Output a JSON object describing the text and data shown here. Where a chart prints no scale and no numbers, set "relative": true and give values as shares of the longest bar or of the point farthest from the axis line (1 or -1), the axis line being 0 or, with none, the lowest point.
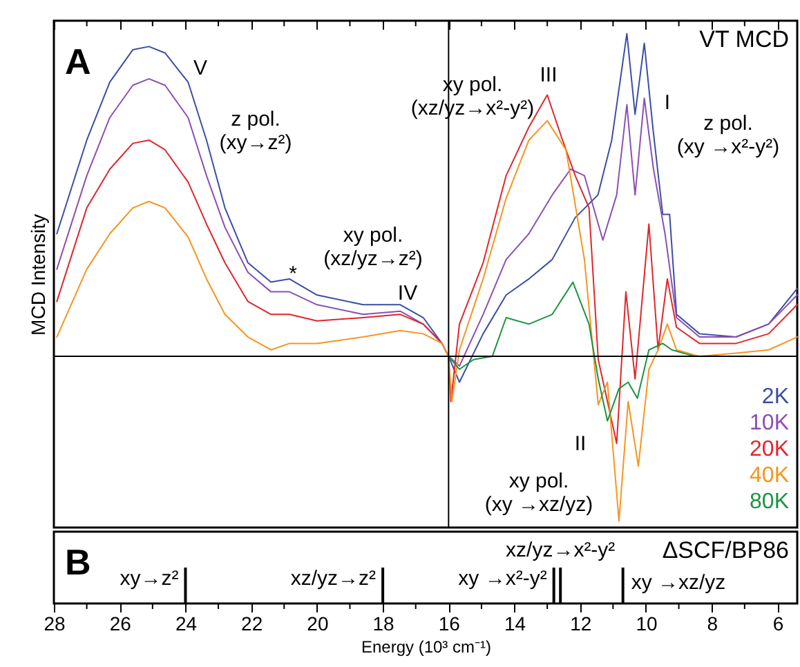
{
  "chart_data": [
    {
      "type": "line",
      "title": "A",
      "ylabel": "MCD Intensity",
      "relative": true,
      "xlim": [
        28,
        5.4
      ],
      "tick_labels": false,
      "xticks": [
        28,
        {
          "value": 27,
          "label": null
        },
        26,
        {
          "value": 25,
          "label": null
        },
        24,
        {
          "value": 23,
          "label": null
        },
        22,
        {
          "value": 21,
          "label": null
        },
        20,
        {
          "value": 19,
          "label": null
        },
        18,
        {
          "value": 17,
          "label": null
        },
        16,
        {
          "value": 15,
          "label": null
        },
        14,
        {
          "value": 13,
          "label": null
        },
        12,
        {
          "value": 11,
          "label": null
        },
        10,
        {
          "value": 9,
          "label": null
        },
        8,
        {
          "value": 7,
          "label": null
        },
        6
      ],
      "ref_lines": [
        {
          "axis": "x",
          "value": 16,
          "color": "#000000"
        }
      ],
      "annotations": [
        "VT MCD",
        "V",
        "z pol.\n(xy→z²)",
        "*",
        "xy pol.\n(xz/yz→z²)",
        "IV",
        "xy pol.\n(xz/yz→x²-y²)",
        "III",
        "I",
        "z pol.\n(xy →x²-y²)",
        "II",
        "xy pol.\n(xy →xz/yz)"
      ],
      "series": [
        {
          "name": "2K",
          "color": "#3b4ea6",
          "x": [
            27.91,
            27.0,
            26.3,
            25.6,
            25.11,
            24.62,
            23.92,
            23.36,
            22.8,
            22.1,
            21.4,
            20.84,
            20.0,
            18.6,
            17.47,
            16.77,
            16.2,
            16.0,
            15.67,
            14.95,
            14.25,
            13.56,
            12.85,
            12.15,
            11.46,
            11.04,
            10.58,
            10.33,
            10.05,
            9.78,
            9.49,
            9.28,
            9.07,
            8.37,
            7.26,
            6.27,
            5.4
          ],
          "values": [
            0.38,
            0.67,
            0.85,
            0.95,
            0.96,
            0.94,
            0.85,
            0.67,
            0.46,
            0.29,
            0.23,
            0.24,
            0.19,
            0.16,
            0.16,
            0.12,
            0.04,
            0,
            -0.08,
            0.07,
            0.19,
            0.24,
            0.3,
            0.43,
            0.5,
            0.67,
            1,
            0.75,
            0.97,
            0.7,
            0.44,
            0.44,
            0.13,
            0.07,
            0.06,
            0.1,
            0.21
          ]
        },
        {
          "name": "10K",
          "color": "#8b4fb5",
          "x": [
            27.91,
            27.0,
            26.3,
            25.6,
            25.11,
            24.62,
            23.92,
            23.36,
            22.8,
            22.1,
            21.4,
            20.84,
            20.0,
            18.6,
            17.47,
            16.77,
            16.2,
            16.0,
            15.67,
            14.95,
            14.25,
            13.56,
            12.85,
            12.29,
            11.87,
            11.31,
            10.89,
            10.58,
            10.33,
            10.05,
            9.77,
            9.42,
            9.07,
            8.37,
            7.26,
            6.27,
            5.4
          ],
          "values": [
            0.27,
            0.56,
            0.74,
            0.84,
            0.86,
            0.84,
            0.74,
            0.56,
            0.4,
            0.26,
            0.2,
            0.2,
            0.16,
            0.13,
            0.14,
            0.1,
            0.04,
            0,
            -0.03,
            0.13,
            0.3,
            0.38,
            0.5,
            0.58,
            0.56,
            0.36,
            0.5,
            0.78,
            0.5,
            0.8,
            0.58,
            0.38,
            0.12,
            0.06,
            0.06,
            0.1,
            0.19
          ]
        },
        {
          "name": "20K",
          "color": "#e1262b",
          "x": [
            27.91,
            27.0,
            26.3,
            25.6,
            25.11,
            24.62,
            23.92,
            23.36,
            22.8,
            22.1,
            21.4,
            20.84,
            20.0,
            18.6,
            17.47,
            16.77,
            16.2,
            16.0,
            15.93,
            15.67,
            14.95,
            14.25,
            13.56,
            13.0,
            12.57,
            12.15,
            11.73,
            11.45,
            10.89,
            10.61,
            10.33,
            9.91,
            9.63,
            9.35,
            9.07,
            8.37,
            7.26,
            6.27,
            5.4
          ],
          "values": [
            0.17,
            0.46,
            0.58,
            0.66,
            0.67,
            0.64,
            0.54,
            0.41,
            0.29,
            0.17,
            0.13,
            0.13,
            0.11,
            0.12,
            0.13,
            0.1,
            0.04,
            0,
            -0.14,
            0.1,
            0.29,
            0.56,
            0.71,
            0.81,
            0.68,
            0.56,
            0.46,
            -0.01,
            -0.27,
            0.2,
            -0.07,
            0.41,
            0.02,
            0.24,
            0.09,
            0.04,
            0.04,
            0.07,
            0.16
          ]
        },
        {
          "name": "40K",
          "color": "#f7941e",
          "x": [
            27.91,
            27.0,
            26.3,
            25.6,
            25.11,
            24.62,
            23.92,
            23.36,
            22.8,
            22.1,
            21.4,
            20.84,
            20.0,
            18.6,
            17.47,
            16.77,
            16.2,
            16.0,
            15.9,
            15.67,
            14.95,
            14.25,
            13.56,
            13.0,
            12.43,
            11.87,
            11.45,
            11.17,
            10.82,
            10.54,
            10.23,
            9.91,
            9.63,
            9.35,
            9.07,
            8.37,
            7.26,
            6.27,
            5.4
          ],
          "values": [
            0.06,
            0.27,
            0.38,
            0.46,
            0.48,
            0.46,
            0.37,
            0.24,
            0.13,
            0.06,
            0.02,
            0.04,
            0.04,
            0.06,
            0.08,
            0.07,
            0.04,
            0,
            -0.14,
            0.02,
            0.24,
            0.49,
            0.67,
            0.73,
            0.64,
            0.3,
            -0.15,
            -0.08,
            -0.51,
            -0.14,
            -0.34,
            -0.04,
            0.02,
            0.1,
            0.02,
            0,
            0.01,
            0.02,
            0.06
          ]
        },
        {
          "name": "80K",
          "color": "#1b9442",
          "x": [
            16.0,
            15.67,
            15.24,
            14.67,
            14.25,
            13.56,
            12.85,
            12.22,
            11.73,
            11.45,
            11.17,
            10.82,
            10.54,
            10.26,
            9.91,
            9.49,
            9.21,
            8.51
          ],
          "values": [
            0,
            -0.04,
            -0.01,
            0,
            0.12,
            0.1,
            0.13,
            0.23,
            0.1,
            -0.07,
            -0.2,
            -0.1,
            -0.08,
            -0.13,
            0.02,
            0.04,
            0.02,
            0
          ]
        }
      ]
    },
    {
      "type": "bar",
      "title": "B",
      "xlabel": "Energy (10³ cm⁻¹)",
      "relative": true,
      "xlim": [
        28,
        5.4
      ],
      "color": "#000000",
      "xticks": [
        28,
        {
          "value": 27,
          "label": null
        },
        26,
        {
          "value": 25,
          "label": null
        },
        24,
        {
          "value": 23,
          "label": null
        },
        22,
        {
          "value": 21,
          "label": null
        },
        20,
        {
          "value": 19,
          "label": null
        },
        18,
        {
          "value": 17,
          "label": null
        },
        16,
        {
          "value": 15,
          "label": null
        },
        14,
        {
          "value": 13,
          "label": null
        },
        12,
        {
          "value": 11,
          "label": null
        },
        10,
        {
          "value": 9,
          "label": null
        },
        8,
        {
          "value": 7,
          "label": null
        },
        6
      ],
      "x": [
        24.0,
        18.0,
        12.8,
        12.6,
        10.7
      ],
      "values": [
        1,
        1,
        1,
        1,
        1
      ],
      "annotations": [
        "ΔSCF/BP86",
        "xy→z²",
        "xz/yz→z²",
        "xy →x²-y²",
        "xz/yz→x²-y²",
        "xy →xz/yz"
      ]
    }
  ]
}
